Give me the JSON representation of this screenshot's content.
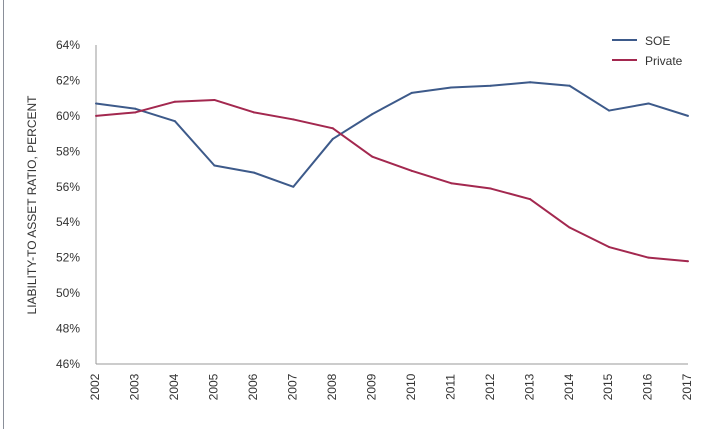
{
  "chart_data": {
    "type": "line",
    "title": "",
    "xlabel": "",
    "ylabel": "LIABILITY-TO ASSET RATIO, PERCENT",
    "x": [
      "2002",
      "2003",
      "2004",
      "2005",
      "2006",
      "2007",
      "2008",
      "2009",
      "2010",
      "2011",
      "2012",
      "2013",
      "2014",
      "2015",
      "2016",
      "2017"
    ],
    "ylim": [
      46,
      64
    ],
    "yticks": [
      "46%",
      "48%",
      "50%",
      "52%",
      "54%",
      "56%",
      "58%",
      "60%",
      "62%",
      "64%"
    ],
    "grid": false,
    "legend": "top-right",
    "series": [
      {
        "name": "SOE",
        "color": "#3d5a8a",
        "values": [
          60.7,
          60.4,
          59.7,
          57.2,
          56.8,
          56.0,
          58.7,
          60.1,
          61.3,
          61.6,
          61.7,
          61.9,
          61.7,
          60.3,
          60.7,
          60.0
        ]
      },
      {
        "name": "Private",
        "color": "#a3284f",
        "values": [
          60.0,
          60.2,
          60.8,
          60.9,
          60.2,
          59.8,
          59.3,
          57.7,
          56.9,
          56.2,
          55.9,
          55.3,
          53.7,
          52.6,
          52.0,
          51.8
        ]
      }
    ]
  }
}
